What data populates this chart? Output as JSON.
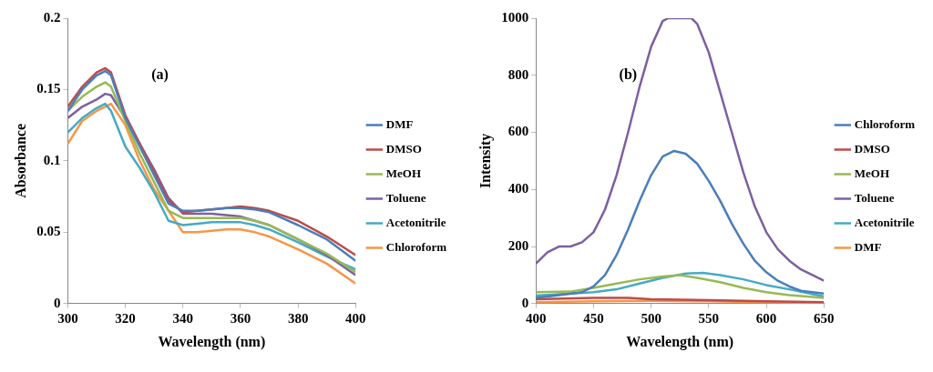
{
  "chart_data": [
    {
      "type": "line",
      "title": "(a)",
      "xlabel": "Wavelength (nm)",
      "ylabel": "Absorbance",
      "xlim": [
        300,
        400
      ],
      "xticks": [
        300,
        320,
        340,
        360,
        380,
        400
      ],
      "ylim": [
        0,
        0.2
      ],
      "yticks": [
        0,
        0.05,
        0.1,
        0.15,
        0.2
      ],
      "grid": false,
      "legend": "right",
      "marker": "none",
      "series": [
        {
          "name": "DMF",
          "color": "#4a7ebb",
          "x": [
            300,
            305,
            310,
            313,
            315,
            320,
            325,
            330,
            335,
            340,
            345,
            350,
            355,
            360,
            365,
            370,
            380,
            390,
            400
          ],
          "values": [
            0.135,
            0.15,
            0.16,
            0.163,
            0.16,
            0.13,
            0.11,
            0.09,
            0.07,
            0.065,
            0.065,
            0.066,
            0.067,
            0.067,
            0.066,
            0.064,
            0.055,
            0.045,
            0.03
          ]
        },
        {
          "name": "DMSO",
          "color": "#be4b48",
          "x": [
            300,
            305,
            310,
            313,
            315,
            320,
            325,
            330,
            335,
            340,
            345,
            350,
            355,
            360,
            365,
            370,
            380,
            390,
            400
          ],
          "values": [
            0.138,
            0.152,
            0.162,
            0.165,
            0.162,
            0.132,
            0.112,
            0.092,
            0.072,
            0.064,
            0.065,
            0.066,
            0.067,
            0.068,
            0.067,
            0.065,
            0.058,
            0.047,
            0.034
          ]
        },
        {
          "name": "MeOH",
          "color": "#98b954",
          "x": [
            300,
            305,
            310,
            313,
            315,
            320,
            325,
            330,
            335,
            340,
            345,
            350,
            355,
            360,
            365,
            370,
            380,
            390,
            400
          ],
          "values": [
            0.135,
            0.145,
            0.152,
            0.155,
            0.152,
            0.128,
            0.105,
            0.085,
            0.065,
            0.06,
            0.06,
            0.06,
            0.06,
            0.06,
            0.058,
            0.055,
            0.045,
            0.035,
            0.022
          ]
        },
        {
          "name": "Toluene",
          "color": "#7d60a0",
          "x": [
            300,
            305,
            310,
            313,
            315,
            320,
            325,
            330,
            335,
            340,
            345,
            350,
            355,
            360,
            365,
            370,
            380,
            390,
            400
          ],
          "values": [
            0.13,
            0.138,
            0.143,
            0.147,
            0.146,
            0.13,
            0.112,
            0.094,
            0.074,
            0.063,
            0.063,
            0.063,
            0.062,
            0.061,
            0.058,
            0.055,
            0.045,
            0.034,
            0.02
          ]
        },
        {
          "name": "Acetonitrile",
          "color": "#46aac5",
          "x": [
            300,
            305,
            310,
            313,
            315,
            320,
            325,
            330,
            335,
            340,
            345,
            350,
            355,
            360,
            365,
            370,
            380,
            390,
            400
          ],
          "values": [
            0.12,
            0.13,
            0.137,
            0.14,
            0.135,
            0.11,
            0.095,
            0.078,
            0.058,
            0.055,
            0.056,
            0.057,
            0.057,
            0.057,
            0.055,
            0.052,
            0.043,
            0.033,
            0.024
          ]
        },
        {
          "name": "Chloroform",
          "color": "#f79646",
          "x": [
            300,
            305,
            310,
            313,
            315,
            320,
            325,
            330,
            335,
            340,
            345,
            350,
            355,
            360,
            365,
            370,
            380,
            390,
            400
          ],
          "values": [
            0.112,
            0.128,
            0.135,
            0.138,
            0.14,
            0.125,
            0.1,
            0.08,
            0.065,
            0.05,
            0.05,
            0.051,
            0.052,
            0.052,
            0.05,
            0.047,
            0.038,
            0.028,
            0.014
          ]
        }
      ]
    },
    {
      "type": "line",
      "title": "(b)",
      "xlabel": "Wavelength (nm)",
      "ylabel": "Intensity",
      "xlim": [
        400,
        650
      ],
      "xticks": [
        400,
        450,
        500,
        550,
        600,
        650
      ],
      "ylim": [
        0,
        1000
      ],
      "yticks": [
        0,
        200,
        400,
        600,
        800,
        1000
      ],
      "grid": false,
      "legend": "right",
      "marker": "none",
      "series": [
        {
          "name": "Chloroform",
          "color": "#4a7ebb",
          "x": [
            400,
            420,
            440,
            450,
            460,
            470,
            480,
            490,
            500,
            510,
            520,
            530,
            540,
            550,
            560,
            570,
            580,
            590,
            600,
            610,
            620,
            630,
            650
          ],
          "values": [
            20,
            30,
            40,
            60,
            100,
            170,
            260,
            360,
            450,
            515,
            535,
            525,
            490,
            430,
            360,
            280,
            210,
            150,
            110,
            80,
            60,
            45,
            35
          ]
        },
        {
          "name": "DMSO",
          "color": "#be4b48",
          "x": [
            400,
            450,
            480,
            500,
            550,
            600,
            650
          ],
          "values": [
            15,
            20,
            20,
            15,
            12,
            8,
            5
          ]
        },
        {
          "name": "MeOH",
          "color": "#98b954",
          "x": [
            400,
            430,
            450,
            470,
            490,
            510,
            525,
            540,
            560,
            580,
            600,
            620,
            650
          ],
          "values": [
            40,
            42,
            55,
            70,
            85,
            95,
            100,
            90,
            75,
            55,
            40,
            30,
            20
          ]
        },
        {
          "name": "Toluene",
          "color": "#7d60a0",
          "x": [
            400,
            410,
            420,
            430,
            440,
            450,
            460,
            470,
            480,
            490,
            500,
            510,
            515,
            535,
            540,
            550,
            560,
            570,
            580,
            590,
            600,
            610,
            620,
            630,
            640,
            650
          ],
          "values": [
            140,
            180,
            200,
            200,
            215,
            250,
            330,
            450,
            600,
            760,
            900,
            990,
            1000,
            1000,
            980,
            880,
            740,
            600,
            460,
            340,
            250,
            190,
            150,
            120,
            100,
            80
          ]
        },
        {
          "name": "Acetonitrile",
          "color": "#46aac5",
          "x": [
            400,
            430,
            450,
            470,
            490,
            510,
            530,
            545,
            560,
            580,
            600,
            620,
            650
          ],
          "values": [
            28,
            35,
            40,
            50,
            70,
            90,
            105,
            108,
            100,
            85,
            65,
            50,
            25
          ]
        },
        {
          "name": "DMF",
          "color": "#f79646",
          "x": [
            400,
            450,
            500,
            550,
            600,
            650
          ],
          "values": [
            5,
            8,
            10,
            8,
            5,
            2
          ]
        }
      ]
    }
  ]
}
